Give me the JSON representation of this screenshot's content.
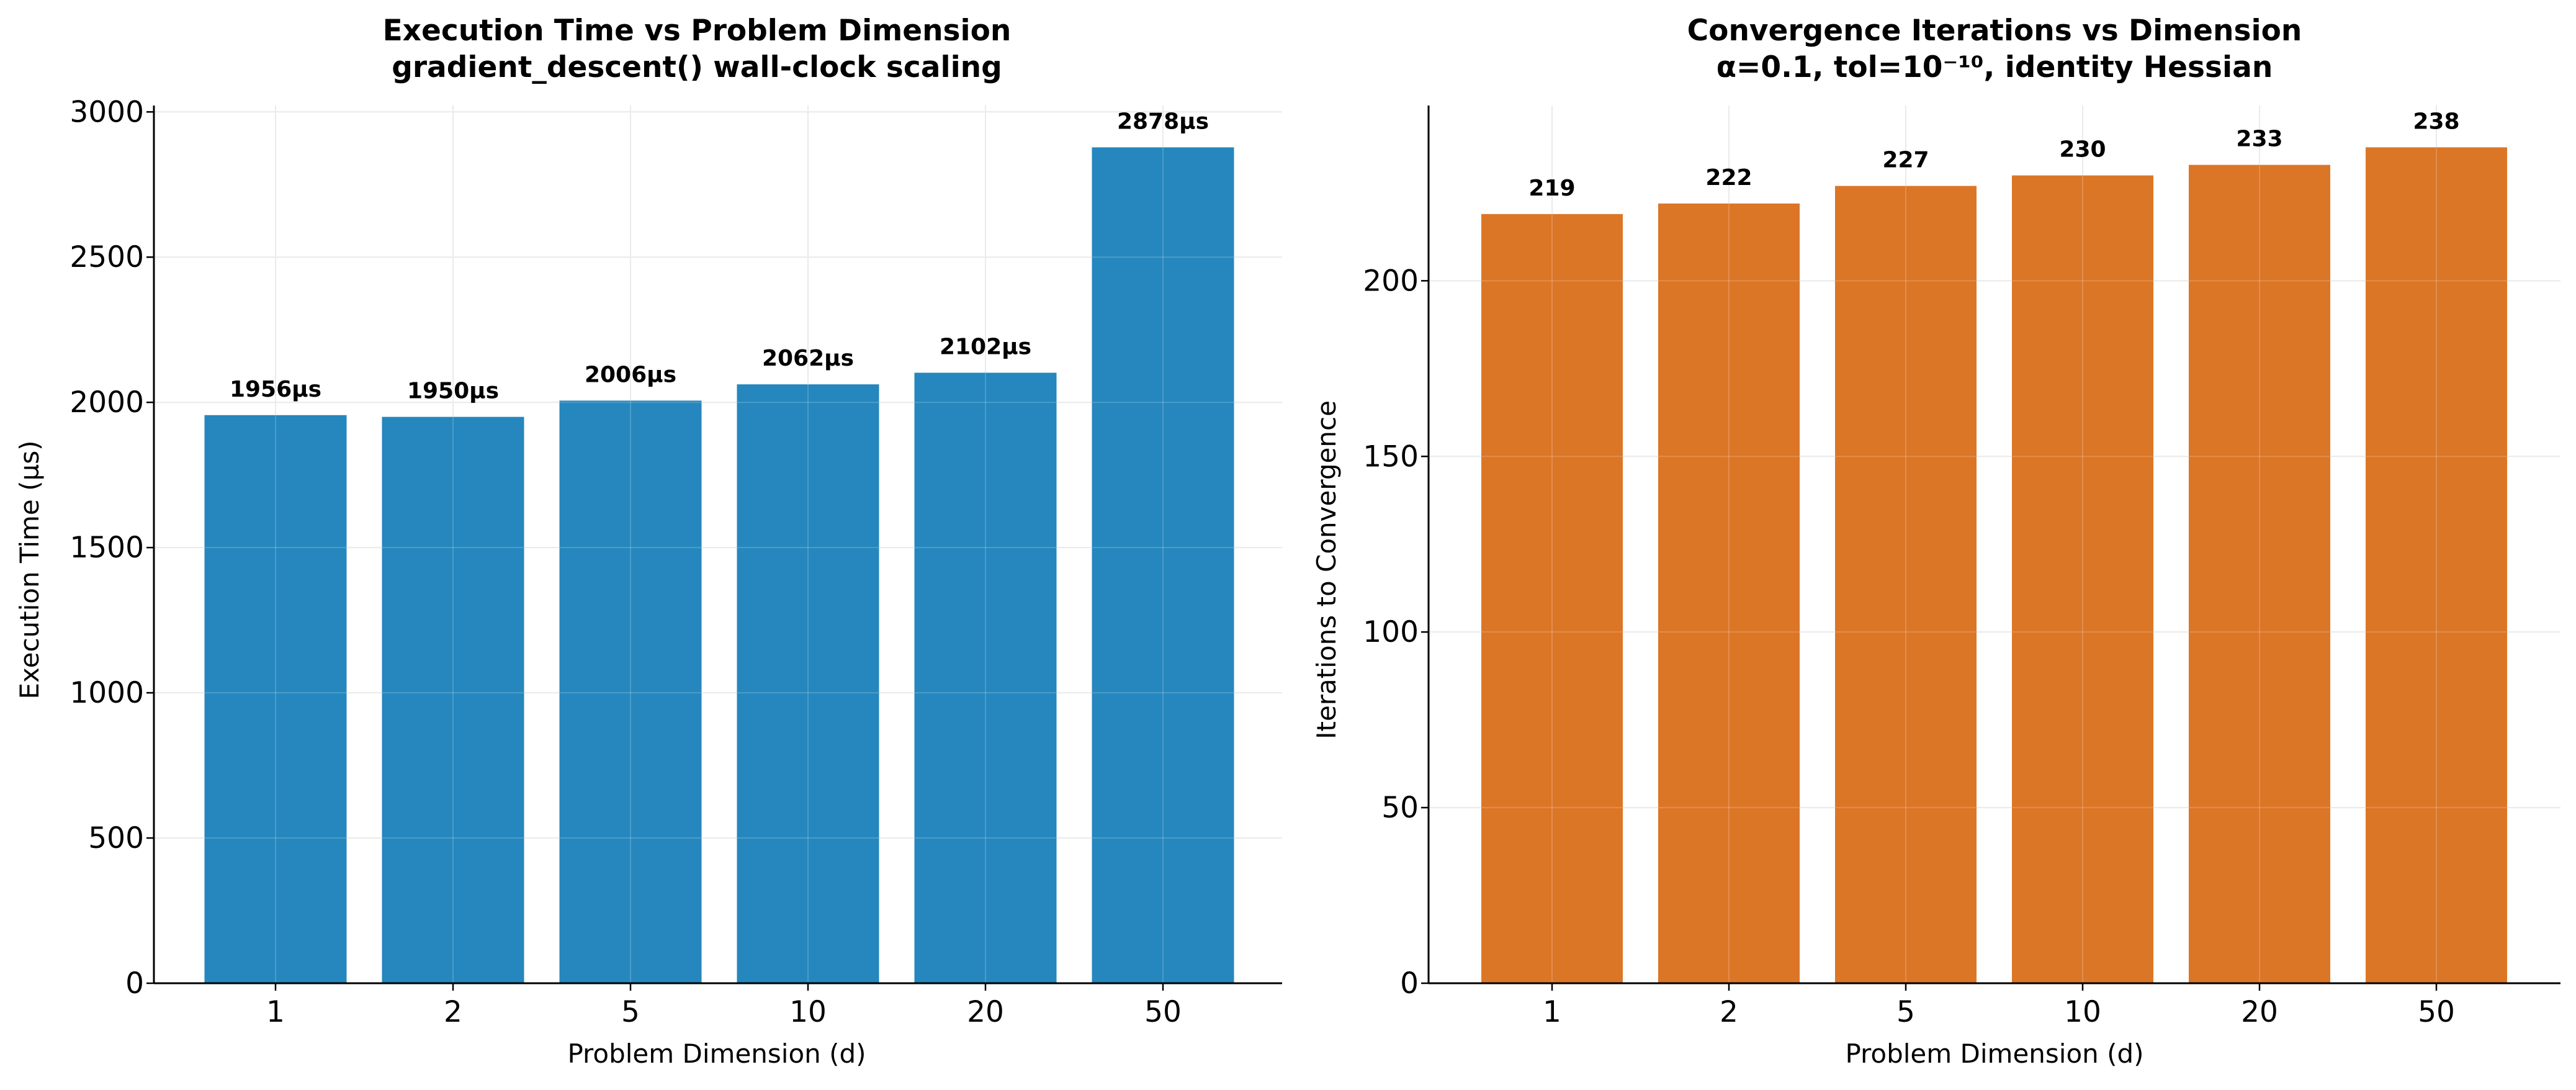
{
  "chart_data": [
    {
      "type": "bar",
      "title": "Execution Time vs Problem Dimension",
      "subtitle": "gradient_descent() wall-clock scaling",
      "xlabel": "Problem Dimension (d)",
      "ylabel": "Execution Time (µs)",
      "categories": [
        "1",
        "2",
        "5",
        "10",
        "20",
        "50"
      ],
      "values": [
        1956,
        1950,
        2006,
        2062,
        2102,
        2878
      ],
      "data_labels": [
        "1956µs",
        "1950µs",
        "2006µs",
        "2062µs",
        "2102µs",
        "2878µs"
      ],
      "ylim": [
        0,
        3022
      ],
      "yticks": [
        0,
        500,
        1000,
        1500,
        2000,
        2500,
        3000
      ],
      "grid": true,
      "color": "#2587bd"
    },
    {
      "type": "bar",
      "title": "Convergence Iterations vs Dimension",
      "subtitle": "α=0.1, tol=10⁻¹⁰, identity Hessian",
      "xlabel": "Problem Dimension (d)",
      "ylabel": "Iterations to Convergence",
      "categories": [
        "1",
        "2",
        "5",
        "10",
        "20",
        "50"
      ],
      "values": [
        219,
        222,
        227,
        230,
        233,
        238
      ],
      "data_labels": [
        "219",
        "222",
        "227",
        "230",
        "233",
        "238"
      ],
      "ylim": [
        0,
        249.9
      ],
      "yticks": [
        0,
        50,
        100,
        150,
        200
      ],
      "grid": true,
      "color": "#db7627"
    }
  ]
}
